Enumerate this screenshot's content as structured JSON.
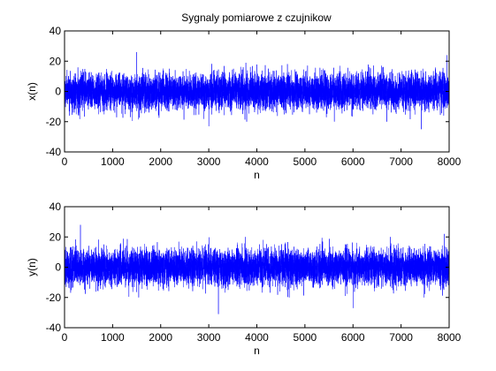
{
  "figure": {
    "title": "Sygnaly pomiarowe z czujnikow",
    "background": "#ffffff",
    "line_color": "#0000ff"
  },
  "chart_data": [
    {
      "type": "line",
      "title": "Sygnaly pomiarowe z czujnikow",
      "xlabel": "n",
      "ylabel": "x(n)",
      "xlim": [
        0,
        8000
      ],
      "ylim": [
        -40,
        40
      ],
      "xticks": [
        0,
        1000,
        2000,
        3000,
        4000,
        5000,
        6000,
        7000,
        8000
      ],
      "yticks": [
        -40,
        -20,
        0,
        20,
        40
      ],
      "xtick_labels": [
        "0",
        "1000",
        "2000",
        "3000",
        "4000",
        "5000",
        "6000",
        "7000",
        "8000"
      ],
      "ytick_labels": [
        "-40",
        "-20",
        "0",
        "20",
        "40"
      ],
      "grid": false,
      "series": [
        {
          "color": "#0000ff",
          "n_samples": 8000,
          "mean": 0,
          "typical_range": [
            -18,
            18
          ],
          "extremes": [
            {
              "x": 1500,
              "y": 26
            },
            {
              "x": 2600,
              "y": -5
            },
            {
              "x": 3000,
              "y": -23
            },
            {
              "x": 7420,
              "y": -25
            },
            {
              "x": 7950,
              "y": 24
            }
          ]
        }
      ]
    },
    {
      "type": "line",
      "title": "",
      "xlabel": "n",
      "ylabel": "y(n)",
      "xlim": [
        0,
        8000
      ],
      "ylim": [
        -40,
        40
      ],
      "xticks": [
        0,
        1000,
        2000,
        3000,
        4000,
        5000,
        6000,
        7000,
        8000
      ],
      "yticks": [
        -40,
        -20,
        0,
        20,
        40
      ],
      "xtick_labels": [
        "0",
        "1000",
        "2000",
        "3000",
        "4000",
        "5000",
        "6000",
        "7000",
        "8000"
      ],
      "ytick_labels": [
        "-40",
        "-20",
        "0",
        "20",
        "40"
      ],
      "grid": false,
      "series": [
        {
          "color": "#0000ff",
          "n_samples": 8000,
          "mean": 0,
          "typical_range": [
            -18,
            18
          ],
          "extremes": [
            {
              "x": 330,
              "y": 28
            },
            {
              "x": 3200,
              "y": -31
            },
            {
              "x": 6000,
              "y": -27
            },
            {
              "x": 7900,
              "y": 22
            }
          ]
        }
      ]
    }
  ]
}
